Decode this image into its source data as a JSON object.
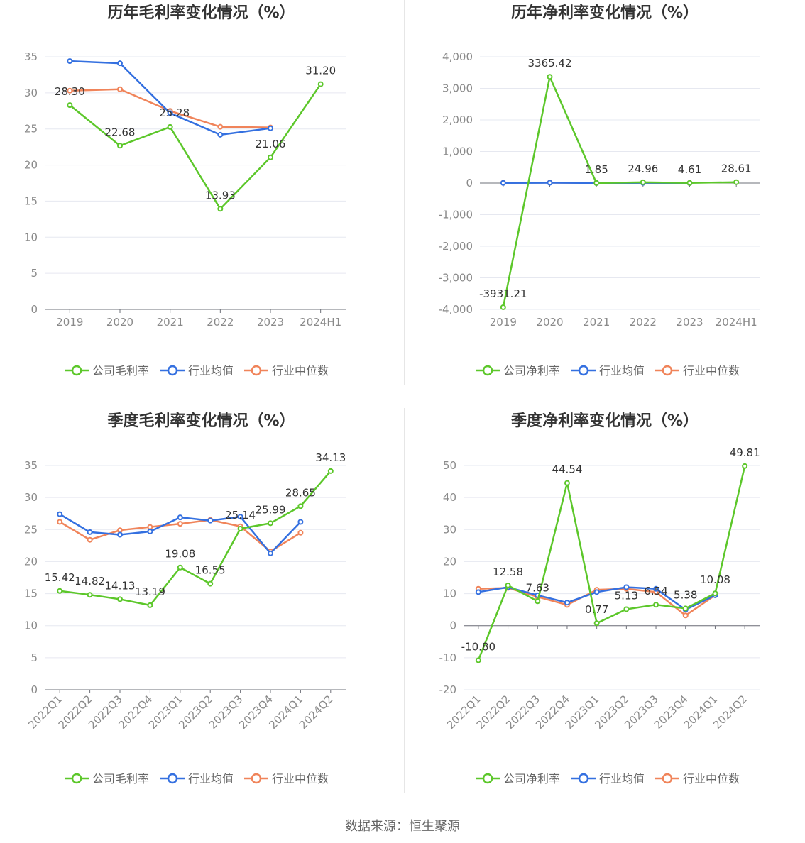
{
  "source_text": "数据来源：恒生聚源",
  "colors": {
    "company": "#5cc72a",
    "avg": "#3470e0",
    "median": "#f0845a"
  },
  "chart_data": [
    {
      "type": "line",
      "title": "历年毛利率变化情况（%）",
      "categories": [
        "2019",
        "2020",
        "2021",
        "2022",
        "2023",
        "2024H1"
      ],
      "ylim": [
        0,
        35
      ],
      "yticks": [
        "0",
        "5",
        "10",
        "15",
        "20",
        "25",
        "30",
        "35"
      ],
      "ytick_values": [
        0,
        5,
        10,
        15,
        20,
        25,
        30,
        35
      ],
      "rotate_x": false,
      "legend_position": "bottom",
      "grid": true,
      "series": [
        {
          "name": "公司毛利率",
          "role": "company",
          "values": [
            28.3,
            22.68,
            25.28,
            13.93,
            21.06,
            31.2
          ],
          "labels": [
            "28.30",
            "22.68",
            "25.28",
            "13.93",
            "21.06",
            "31.20"
          ]
        },
        {
          "name": "行业均值",
          "role": "avg",
          "values": [
            34.4,
            34.1,
            27.2,
            24.2,
            25.1,
            null
          ]
        },
        {
          "name": "行业中位数",
          "role": "median",
          "values": [
            30.3,
            30.5,
            27.5,
            25.3,
            25.2,
            null
          ]
        }
      ]
    },
    {
      "type": "line",
      "title": "历年净利率变化情况（%）",
      "categories": [
        "2019",
        "2020",
        "2021",
        "2022",
        "2023",
        "2024H1"
      ],
      "ylim": [
        -4000,
        4000
      ],
      "yticks": [
        "-4,000",
        "-3,000",
        "-2,000",
        "-1,000",
        "0",
        "1,000",
        "2,000",
        "3,000",
        "4,000"
      ],
      "ytick_values": [
        -4000,
        -3000,
        -2000,
        -1000,
        0,
        1000,
        2000,
        3000,
        4000
      ],
      "rotate_x": false,
      "legend_position": "bottom",
      "grid": true,
      "series": [
        {
          "name": "公司净利率",
          "role": "company",
          "values": [
            -3931.21,
            3365.42,
            1.85,
            24.96,
            4.61,
            28.61
          ],
          "labels": [
            "-3931.21",
            "3365.42",
            "1.85",
            "24.96",
            "4.61",
            "28.61"
          ]
        },
        {
          "name": "行业均值",
          "role": "avg",
          "values": [
            5,
            10,
            3,
            8,
            2,
            null
          ]
        },
        {
          "name": "行业中位数",
          "role": "median",
          "values": [
            8,
            15,
            5,
            10,
            3,
            null
          ]
        }
      ]
    },
    {
      "type": "line",
      "title": "季度毛利率变化情况（%）",
      "categories": [
        "2022Q1",
        "2022Q2",
        "2022Q3",
        "2022Q4",
        "2023Q1",
        "2023Q2",
        "2023Q3",
        "2023Q4",
        "2024Q1",
        "2024Q2"
      ],
      "ylim": [
        0,
        35
      ],
      "yticks": [
        "0",
        "5",
        "10",
        "15",
        "20",
        "25",
        "30",
        "35"
      ],
      "ytick_values": [
        0,
        5,
        10,
        15,
        20,
        25,
        30,
        35
      ],
      "rotate_x": true,
      "legend_position": "bottom",
      "grid": true,
      "series": [
        {
          "name": "公司毛利率",
          "role": "company",
          "values": [
            15.42,
            14.82,
            14.13,
            13.19,
            19.08,
            16.55,
            25.14,
            25.99,
            28.65,
            34.13
          ],
          "labels": [
            "15.42",
            "14.82",
            "14.13",
            "13.19",
            "19.08",
            "16.55",
            "25.14",
            "25.99",
            "28.65",
            "34.13"
          ]
        },
        {
          "name": "行业均值",
          "role": "avg",
          "values": [
            27.4,
            24.6,
            24.2,
            24.7,
            26.9,
            26.4,
            27.0,
            21.3,
            26.2,
            null
          ]
        },
        {
          "name": "行业中位数",
          "role": "median",
          "values": [
            26.2,
            23.4,
            24.9,
            25.4,
            25.9,
            26.5,
            25.5,
            21.6,
            24.5,
            null
          ]
        }
      ]
    },
    {
      "type": "line",
      "title": "季度净利率变化情况（%）",
      "categories": [
        "2022Q1",
        "2022Q2",
        "2022Q3",
        "2022Q4",
        "2023Q1",
        "2023Q2",
        "2023Q3",
        "2023Q4",
        "2024Q1",
        "2024Q2"
      ],
      "ylim": [
        -20,
        50
      ],
      "yticks": [
        "-20",
        "-10",
        "0",
        "10",
        "20",
        "30",
        "40",
        "50"
      ],
      "ytick_values": [
        -20,
        -10,
        0,
        10,
        20,
        30,
        40,
        50
      ],
      "rotate_x": true,
      "legend_position": "bottom",
      "grid": true,
      "series": [
        {
          "name": "公司净利率",
          "role": "company",
          "values": [
            -10.8,
            12.58,
            7.63,
            44.54,
            0.77,
            5.13,
            6.54,
            5.38,
            10.08,
            49.81
          ],
          "labels": [
            "-10.80",
            "12.58",
            "7.63",
            "44.54",
            "0.77",
            "5.13",
            "6.54",
            "5.38",
            "10.08",
            "49.81"
          ]
        },
        {
          "name": "行业均值",
          "role": "avg",
          "values": [
            10.5,
            12.0,
            9.5,
            7.2,
            10.5,
            12.0,
            11.5,
            5.0,
            9.5,
            null
          ]
        },
        {
          "name": "行业中位数",
          "role": "median",
          "values": [
            11.5,
            11.8,
            9.0,
            6.5,
            11.2,
            11.5,
            10.5,
            3.2,
            9.5,
            null
          ]
        }
      ]
    }
  ]
}
